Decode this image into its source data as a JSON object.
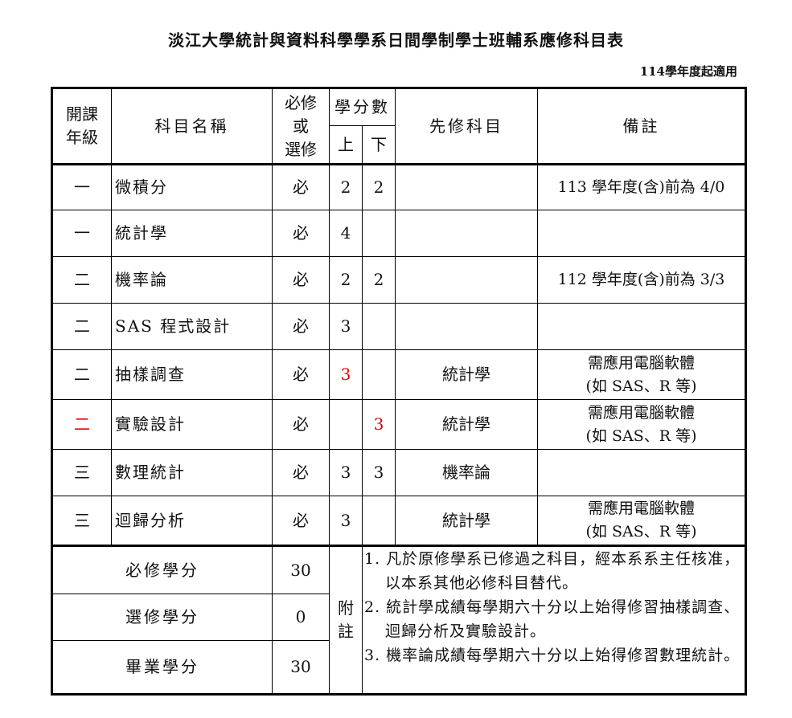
{
  "title": "淡江大學統計與資料科學學系日間學制學士班輔系應修科目表",
  "applies_from": "114學年度起適用",
  "header": {
    "grade": [
      "開課",
      "年級"
    ],
    "course_name": "科目名稱",
    "required_elective": [
      "必修",
      "或",
      "選修"
    ],
    "credits": "學分數",
    "first_sem": "上",
    "second_sem": "下",
    "prerequisite": "先修科目",
    "remarks": "備註"
  },
  "rows": [
    {
      "grade": "一",
      "name": "微積分",
      "type": "必",
      "first": "2",
      "second": "2",
      "prereq": "",
      "remarks": [
        "113 學年度(含)前為 4/0"
      ]
    },
    {
      "grade": "一",
      "name": "統計學",
      "type": "必",
      "first": "4",
      "second": "",
      "prereq": "",
      "remarks": [
        ""
      ]
    },
    {
      "grade": "二",
      "name": "機率論",
      "type": "必",
      "first": "2",
      "second": "2",
      "prereq": "",
      "remarks": [
        "112 學年度(含)前為 3/3"
      ]
    },
    {
      "grade": "二",
      "name": "SAS 程式設計",
      "type": "必",
      "first": "3",
      "second": "",
      "prereq": "",
      "remarks": [
        ""
      ]
    },
    {
      "grade": "二",
      "name": "抽樣調查",
      "type": "必",
      "first": "3",
      "second": "",
      "prereq": "統計學",
      "remarks": [
        "需應用電腦軟體",
        "(如 SAS、R 等)"
      ]
    },
    {
      "grade": "二",
      "name": "實驗設計",
      "type": "必",
      "first": "",
      "second": "3",
      "prereq": "統計學",
      "remarks": [
        "需應用電腦軟體",
        "(如 SAS、R 等)"
      ]
    },
    {
      "grade": "三",
      "name": "數理統計",
      "type": "必",
      "first": "3",
      "second": "3",
      "prereq": "機率論",
      "remarks": [
        ""
      ]
    },
    {
      "grade": "三",
      "name": "迴歸分析",
      "type": "必",
      "first": "3",
      "second": "",
      "prereq": "統計學",
      "remarks": [
        "需應用電腦軟體",
        "(如 SAS、R 等)"
      ]
    }
  ],
  "highlight_color": "#e00000",
  "summary": [
    {
      "label": "必修學分",
      "value": "30"
    },
    {
      "label": "選修學分",
      "value": "0"
    },
    {
      "label": "畢業學分",
      "value": "30"
    }
  ],
  "notes_label": [
    "附",
    "註"
  ],
  "notes": [
    "1. 凡於原修學系已修過之科目，經本系系主任核准，以本系其他必修科目替代。",
    "2. 統計學成績每學期六十分以上始得修習抽樣調查、迴歸分析及實驗設計。",
    "3. 機率論成績每學期六十分以上始得修習數理統計。"
  ]
}
